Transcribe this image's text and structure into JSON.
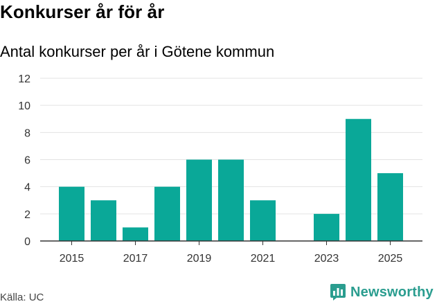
{
  "header": {
    "title": "Konkurser år för år",
    "subtitle": "Antal konkurser per år i Götene kommun"
  },
  "footer": {
    "source": "Källa: UC",
    "brand": "Newsworthy",
    "brand_color": "#2a9d8f"
  },
  "chart_data": {
    "type": "bar",
    "categories": [
      "2015",
      "2016",
      "2017",
      "2018",
      "2019",
      "2020",
      "2021",
      "2022",
      "2023",
      "2024",
      "2025"
    ],
    "values": [
      4,
      3,
      1,
      4,
      6,
      6,
      3,
      0,
      2,
      9,
      5
    ],
    "x_tick_labels": [
      "2015",
      "2017",
      "2019",
      "2021",
      "2023",
      "2025"
    ],
    "y_ticks": [
      0,
      2,
      4,
      6,
      8,
      10,
      12
    ],
    "ylim": [
      0,
      12
    ],
    "xlabel": "",
    "ylabel": "",
    "grid": true,
    "bar_color": "#0aa898",
    "grid_color": "#e3e3e3",
    "axis_color": "#333333"
  }
}
